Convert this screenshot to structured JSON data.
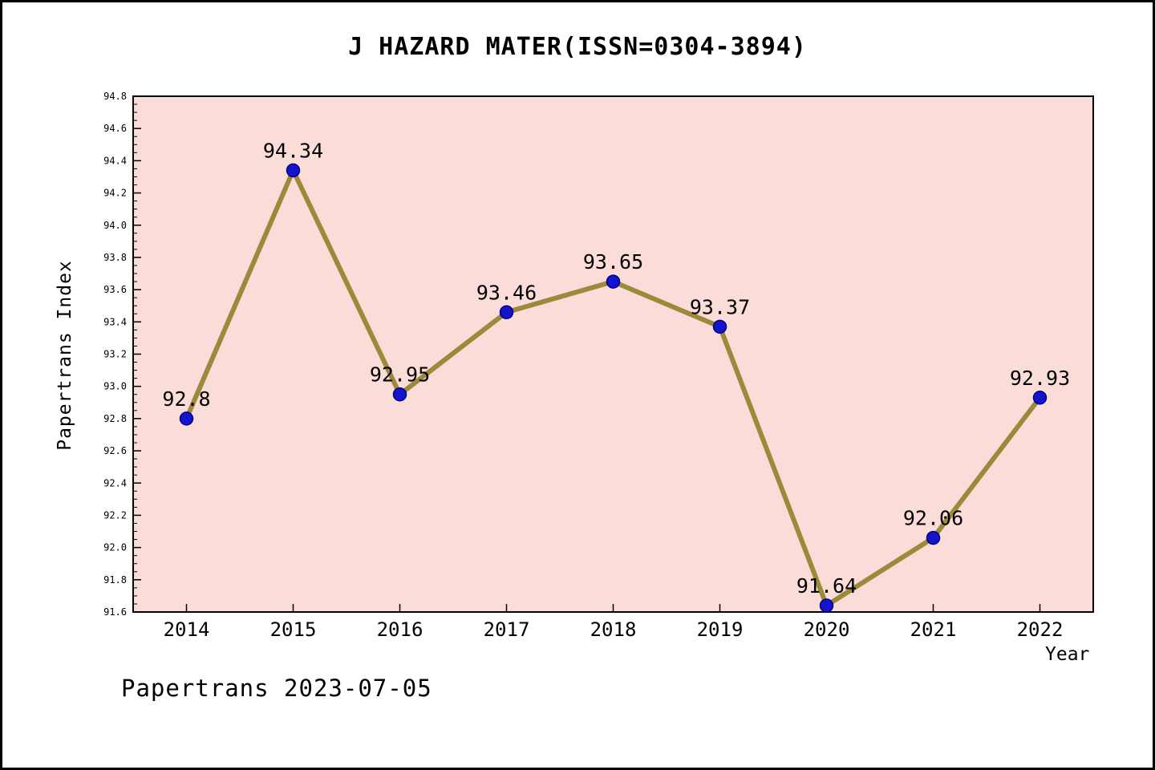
{
  "title": "J HAZARD MATER(ISSN=0304-3894)",
  "footer": "Papertrans 2023-07-05",
  "chart_data": {
    "type": "line",
    "title": "J HAZARD MATER(ISSN=0304-3894)",
    "xlabel": "Year",
    "ylabel": "Papertrans Index",
    "categories": [
      "2014",
      "2015",
      "2016",
      "2017",
      "2018",
      "2019",
      "2020",
      "2021",
      "2022"
    ],
    "values": [
      92.8,
      94.34,
      92.95,
      93.46,
      93.65,
      93.37,
      91.64,
      92.06,
      92.93
    ],
    "ylim": [
      91.6,
      94.8
    ],
    "ytick_step": 0.2,
    "ytick_minor_step": 0.05,
    "grid": false,
    "legend": "none",
    "colors": {
      "line": "#9a8a3a",
      "point_fill": "#1414cc",
      "point_edge": "#000080",
      "plot_bg": "#fadcd9",
      "axis": "#000000",
      "text": "#000000",
      "page_bg": "#ffffff"
    }
  }
}
